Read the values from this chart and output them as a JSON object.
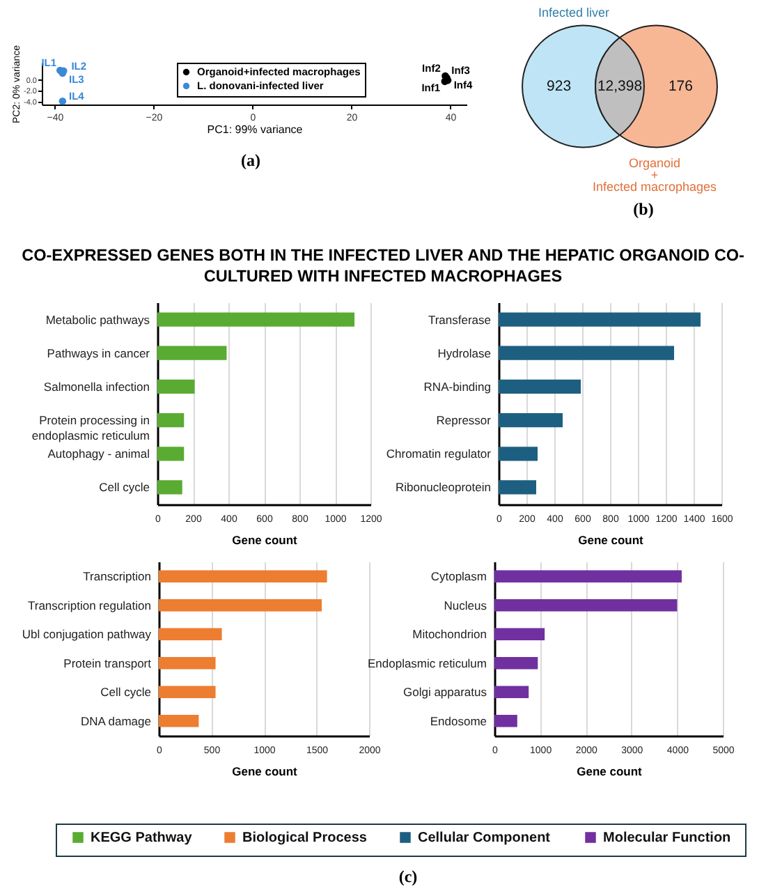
{
  "chart_data": [
    {
      "type": "scatter",
      "xlabel": "PC1: 99% variance",
      "ylabel": "PC2: 0% variance",
      "xlim": [
        -42.6,
        43.3
      ],
      "xticks": [
        -40,
        -20,
        0,
        20,
        40
      ],
      "ylim": [
        -4.6,
        3.0
      ],
      "yticks": [
        {
          "value": 0,
          "label": "0.0"
        },
        {
          "value": -2,
          "label": "-2.0"
        },
        {
          "value": -4,
          "label": "-4.0"
        }
      ],
      "legend": "top",
      "grid": false,
      "marker": "circle",
      "series": [
        {
          "name": "Organoid+infected macrophages",
          "color": "#000000",
          "x": [
            38.9,
            39.0,
            39.3,
            39.5
          ],
          "values": [
            -0.4,
            0.6,
            0.2,
            -0.2
          ],
          "value_labels": [
            "Inf1",
            "Inf2",
            "Inf3",
            "Inf4"
          ]
        },
        {
          "name": "L. donovani-infected liver",
          "color": "#3a8ad6",
          "x": [
            -38.9,
            -38.2,
            -38.4,
            -38.4
          ],
          "values": [
            1.6,
            1.5,
            1.1,
            -4.0
          ],
          "value_labels": [
            "IL1",
            "IL2",
            "IL3",
            "IL4"
          ]
        }
      ],
      "annotations": [
        "(a)"
      ]
    },
    {
      "type": "other",
      "values": [
        923,
        12398,
        176
      ],
      "value_labels": [
        "923",
        "12,398",
        "176"
      ],
      "colors": [
        "#bfe4f5",
        "#bfbfbf",
        "#f7b795"
      ],
      "annotations": [
        "Infected liver",
        "Organoid\n+\nInfected macrophages",
        "(b)"
      ]
    },
    {
      "type": "bar",
      "orientation": "horizontal",
      "title": "CO-EXPRESSED GENES BOTH IN THE INFECTED LIVER AND THE HEPATIC ORGANOID CO-CULTURED WITH INFECTED MACROPHAGES",
      "xlabel": "Gene count",
      "categories": [
        "Metabolic pathways",
        "Pathways in cancer",
        "Salmonella infection",
        "Protein processing in endoplasmic reticulum",
        "Autophagy - animal",
        "Cell cycle"
      ],
      "series": [
        {
          "name": "KEGG Pathway",
          "color": "#5aab32",
          "values": [
            1110,
            390,
            210,
            150,
            150,
            140
          ]
        }
      ],
      "xlim": [
        0,
        1200
      ],
      "xticks": [
        0,
        200,
        400,
        600,
        800,
        1000,
        1200
      ],
      "grid": "x",
      "legend": "bottom",
      "annotations": [
        "(c)"
      ]
    },
    {
      "type": "bar",
      "orientation": "horizontal",
      "xlabel": "Gene count",
      "categories": [
        "Transferase",
        "Hydrolase",
        "RNA-binding",
        "Repressor",
        "Chromatin regulator",
        "Ribonucleoprotein"
      ],
      "series": [
        {
          "name": "Cellular Component",
          "color": "#1d5f80",
          "values": [
            1450,
            1260,
            590,
            460,
            280,
            270
          ]
        }
      ],
      "xlim": [
        0,
        1600
      ],
      "xticks": [
        0,
        200,
        400,
        600,
        800,
        1000,
        1200,
        1400,
        1600
      ],
      "grid": "x",
      "legend": "bottom"
    },
    {
      "type": "bar",
      "orientation": "horizontal",
      "xlabel": "Gene count",
      "categories": [
        "Transcription",
        "Transcription regulation",
        "Ubl conjugation pathway",
        "Protein transport",
        "Cell cycle",
        "DNA damage"
      ],
      "series": [
        {
          "name": "Biological Process",
          "color": "#ed7d31",
          "values": [
            1600,
            1550,
            600,
            540,
            540,
            380
          ]
        }
      ],
      "xlim": [
        0,
        2000
      ],
      "xticks": [
        0,
        500,
        1000,
        1500,
        2000
      ],
      "grid": "x",
      "legend": "bottom"
    },
    {
      "type": "bar",
      "orientation": "horizontal",
      "xlabel": "Gene count",
      "categories": [
        "Cytoplasm",
        "Nucleus",
        "Mitochondrion",
        "Endoplasmic reticulum",
        "Golgi apparatus",
        "Endosome"
      ],
      "series": [
        {
          "name": "Molecular Function",
          "color": "#7030a0",
          "values": [
            4100,
            4000,
            1100,
            950,
            750,
            500
          ]
        }
      ],
      "xlim": [
        0,
        5000
      ],
      "xticks": [
        0,
        1000,
        2000,
        3000,
        4000,
        5000
      ],
      "grid": "x",
      "legend": "bottom"
    }
  ]
}
